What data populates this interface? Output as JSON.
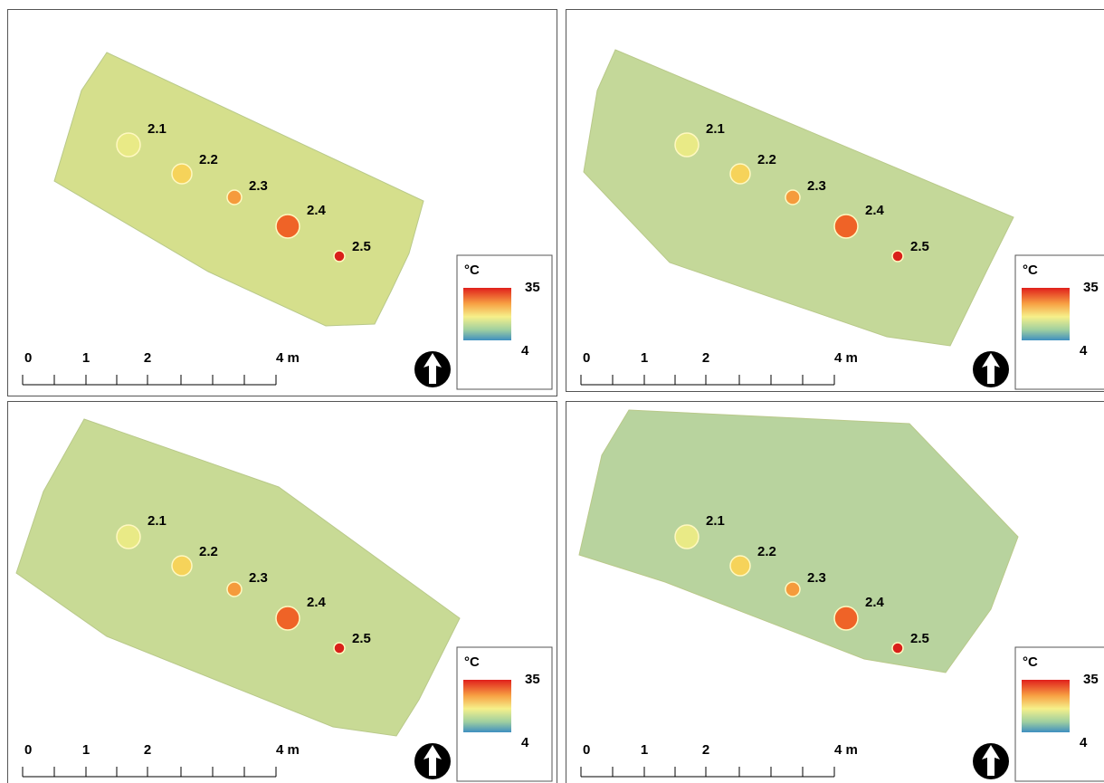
{
  "panels": [
    {
      "points": [
        {
          "label": "2.1"
        },
        {
          "label": "2.2"
        },
        {
          "label": "2.3"
        },
        {
          "label": "2.4"
        },
        {
          "label": "2.5"
        }
      ],
      "legend": {
        "unit": "°C",
        "max": "35",
        "min": "4"
      },
      "scale": {
        "labels": [
          "0",
          "1",
          "2",
          "4 m"
        ]
      }
    },
    {
      "points": [
        {
          "label": "2.1"
        },
        {
          "label": "2.2"
        },
        {
          "label": "2.3"
        },
        {
          "label": "2.4"
        },
        {
          "label": "2.5"
        }
      ],
      "legend": {
        "unit": "°C",
        "max": "35",
        "min": "4"
      },
      "scale": {
        "labels": [
          "0",
          "1",
          "2",
          "4 m"
        ]
      }
    },
    {
      "points": [
        {
          "label": "2.1"
        },
        {
          "label": "2.2"
        },
        {
          "label": "2.3"
        },
        {
          "label": "2.4"
        },
        {
          "label": "2.5"
        }
      ],
      "legend": {
        "unit": "°C",
        "max": "35",
        "min": "4"
      },
      "scale": {
        "labels": [
          "0",
          "1",
          "2",
          "4 m"
        ]
      }
    },
    {
      "points": [
        {
          "label": "2.1"
        },
        {
          "label": "2.2"
        },
        {
          "label": "2.3"
        },
        {
          "label": "2.4"
        },
        {
          "label": "2.5"
        }
      ],
      "legend": {
        "unit": "°C",
        "max": "35",
        "min": "4"
      },
      "scale": {
        "labels": [
          "0",
          "1",
          "2",
          "4 m"
        ]
      }
    }
  ]
}
